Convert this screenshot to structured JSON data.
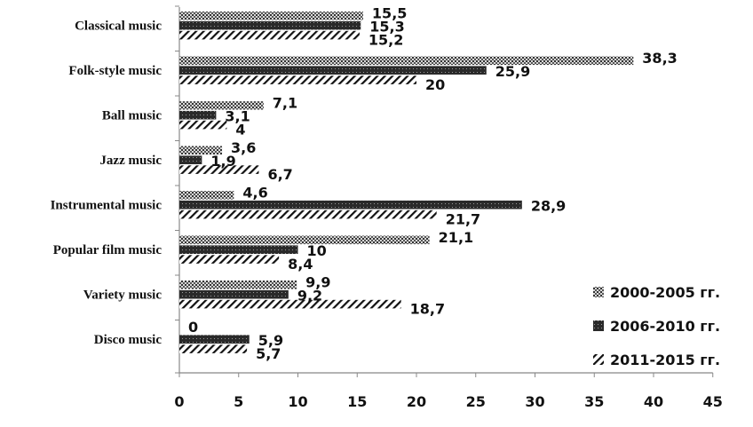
{
  "chart_data": {
    "type": "bar",
    "orientation": "horizontal",
    "categories": [
      "Classical music",
      "Folk-style music",
      "Ball music",
      "Jazz music",
      "Instrumental music",
      "Popular film music",
      "Variety music",
      "Disco music"
    ],
    "series": [
      {
        "name": "2000-2005 гг.",
        "values": [
          15.5,
          38.3,
          7.1,
          3.6,
          4.6,
          21.1,
          9.9,
          0
        ],
        "labels": [
          "15,5",
          "38,3",
          "7,1",
          "3,6",
          "4,6",
          "21,1",
          "9,9",
          "0"
        ],
        "pattern": "dots"
      },
      {
        "name": "2006-2010 гг.",
        "values": [
          15.3,
          25.9,
          3.1,
          1.9,
          28.9,
          10,
          9.2,
          5.9
        ],
        "labels": [
          "15,3",
          "25,9",
          "3,1",
          "1,9",
          "28,9",
          "10",
          "9,2",
          "5,9"
        ],
        "pattern": "dark-dots"
      },
      {
        "name": "2011-2015 гг.",
        "values": [
          15.2,
          20,
          4,
          6.7,
          21.7,
          8.4,
          18.7,
          5.7
        ],
        "labels": [
          "15,2",
          "20",
          "4",
          "6,7",
          "21,7",
          "8,4",
          "18,7",
          "5,7"
        ],
        "pattern": "diagonal-hatch"
      }
    ],
    "xlim": [
      0,
      45
    ],
    "xticks": [
      "0",
      "5",
      "10",
      "15",
      "20",
      "25",
      "30",
      "35",
      "40",
      "45"
    ],
    "legend": "bottom-right",
    "grid": false
  }
}
